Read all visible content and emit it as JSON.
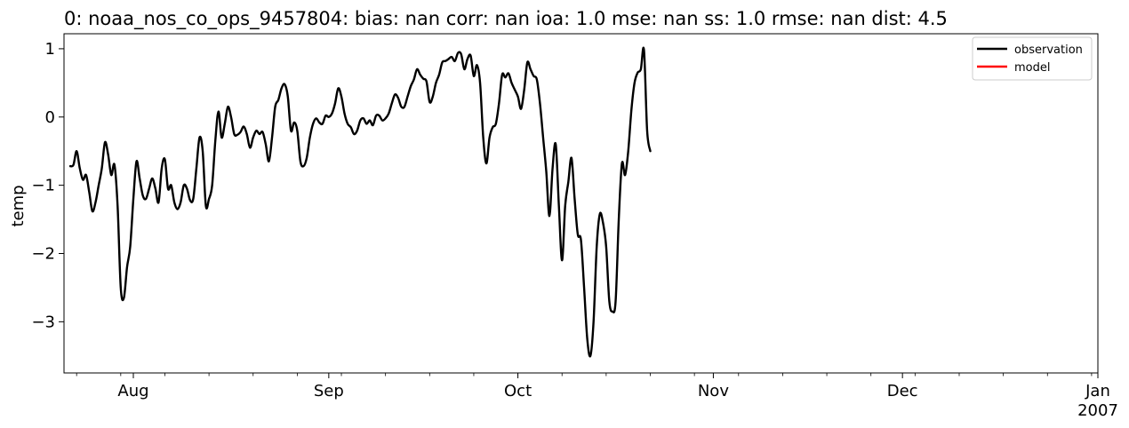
{
  "chart_data": {
    "type": "line",
    "title": "0: noaa_nos_co_ops_9457804: bias: nan  corr: nan  ioa: 1.0  mse: nan  ss: 1.0  rmse: nan  dist: 4.5",
    "xlabel": "",
    "ylabel": "temp",
    "xlim": [
      "2006-07-21",
      "2007-01-01"
    ],
    "ylim": [
      -3.75,
      1.22
    ],
    "x_ticks": [
      {
        "date": "2006-08-01",
        "label": "Aug"
      },
      {
        "date": "2006-09-01",
        "label": "Sep"
      },
      {
        "date": "2006-10-01",
        "label": "Oct"
      },
      {
        "date": "2006-11-01",
        "label": "Nov"
      },
      {
        "date": "2006-12-01",
        "label": "Dec"
      },
      {
        "date": "2007-01-01",
        "label": "Jan",
        "sublabel": "2007"
      }
    ],
    "y_ticks": [
      {
        "value": 1,
        "label": "1"
      },
      {
        "value": 0,
        "label": "0"
      },
      {
        "value": -1,
        "label": "−1"
      },
      {
        "value": -2,
        "label": "−2"
      },
      {
        "value": -3,
        "label": "−3"
      }
    ],
    "grid": false,
    "legend": {
      "position": "top-right"
    },
    "series": [
      {
        "name": "observation",
        "color": "#000000",
        "points": [
          [
            "2006-07-22",
            -0.72
          ],
          [
            "2006-07-22T12:00",
            -0.7
          ],
          [
            "2006-07-23",
            -0.5
          ],
          [
            "2006-07-23T12:00",
            -0.75
          ],
          [
            "2006-07-24",
            -0.92
          ],
          [
            "2006-07-24T12:00",
            -0.85
          ],
          [
            "2006-07-25",
            -1.1
          ],
          [
            "2006-07-25T12:00",
            -1.38
          ],
          [
            "2006-07-26",
            -1.25
          ],
          [
            "2006-07-26T12:00",
            -1.0
          ],
          [
            "2006-07-27",
            -0.75
          ],
          [
            "2006-07-27T12:00",
            -0.37
          ],
          [
            "2006-07-28",
            -0.55
          ],
          [
            "2006-07-28T12:00",
            -0.85
          ],
          [
            "2006-07-29",
            -0.7
          ],
          [
            "2006-07-29T12:00",
            -1.3
          ],
          [
            "2006-07-30",
            -2.5
          ],
          [
            "2006-07-30T12:00",
            -2.65
          ],
          [
            "2006-07-31",
            -2.2
          ],
          [
            "2006-07-31T12:00",
            -1.9
          ],
          [
            "2006-08-01",
            -1.2
          ],
          [
            "2006-08-01T12:00",
            -0.65
          ],
          [
            "2006-08-02",
            -0.9
          ],
          [
            "2006-08-02T12:00",
            -1.15
          ],
          [
            "2006-08-03",
            -1.2
          ],
          [
            "2006-08-03T12:00",
            -1.05
          ],
          [
            "2006-08-04",
            -0.9
          ],
          [
            "2006-08-04T12:00",
            -1.05
          ],
          [
            "2006-08-05",
            -1.25
          ],
          [
            "2006-08-05T12:00",
            -0.75
          ],
          [
            "2006-08-06",
            -0.62
          ],
          [
            "2006-08-06T12:00",
            -1.05
          ],
          [
            "2006-08-07",
            -1.0
          ],
          [
            "2006-08-07T12:00",
            -1.25
          ],
          [
            "2006-08-08",
            -1.35
          ],
          [
            "2006-08-08T12:00",
            -1.25
          ],
          [
            "2006-08-09",
            -1.0
          ],
          [
            "2006-08-09T12:00",
            -1.05
          ],
          [
            "2006-08-10",
            -1.22
          ],
          [
            "2006-08-10T12:00",
            -1.2
          ],
          [
            "2006-08-11",
            -0.75
          ],
          [
            "2006-08-11T12:00",
            -0.3
          ],
          [
            "2006-08-12",
            -0.5
          ],
          [
            "2006-08-12T12:00",
            -1.3
          ],
          [
            "2006-08-13",
            -1.2
          ],
          [
            "2006-08-13T12:00",
            -1.0
          ],
          [
            "2006-08-14",
            -0.35
          ],
          [
            "2006-08-14T12:00",
            0.08
          ],
          [
            "2006-08-15",
            -0.3
          ],
          [
            "2006-08-15T12:00",
            -0.1
          ],
          [
            "2006-08-16",
            0.15
          ],
          [
            "2006-08-16T12:00",
            0.0
          ],
          [
            "2006-08-17",
            -0.25
          ],
          [
            "2006-08-17T12:00",
            -0.26
          ],
          [
            "2006-08-18",
            -0.22
          ],
          [
            "2006-08-18T12:00",
            -0.14
          ],
          [
            "2006-08-19",
            -0.25
          ],
          [
            "2006-08-19T12:00",
            -0.45
          ],
          [
            "2006-08-20",
            -0.3
          ],
          [
            "2006-08-20T12:00",
            -0.2
          ],
          [
            "2006-08-21",
            -0.25
          ],
          [
            "2006-08-21T12:00",
            -0.22
          ],
          [
            "2006-08-22",
            -0.4
          ],
          [
            "2006-08-22T12:00",
            -0.65
          ],
          [
            "2006-08-23",
            -0.3
          ],
          [
            "2006-08-23T12:00",
            0.15
          ],
          [
            "2006-08-24",
            0.25
          ],
          [
            "2006-08-24T12:00",
            0.42
          ],
          [
            "2006-08-25",
            0.48
          ],
          [
            "2006-08-25T12:00",
            0.3
          ],
          [
            "2006-08-26",
            -0.2
          ],
          [
            "2006-08-26T12:00",
            -0.08
          ],
          [
            "2006-08-27",
            -0.2
          ],
          [
            "2006-08-27T12:00",
            -0.65
          ],
          [
            "2006-08-28",
            -0.72
          ],
          [
            "2006-08-28T12:00",
            -0.6
          ],
          [
            "2006-08-29",
            -0.3
          ],
          [
            "2006-08-29T12:00",
            -0.1
          ],
          [
            "2006-08-30",
            -0.02
          ],
          [
            "2006-08-30T12:00",
            -0.08
          ],
          [
            "2006-08-31",
            -0.1
          ],
          [
            "2006-08-31T12:00",
            0.02
          ],
          [
            "2006-09-01",
            0.0
          ],
          [
            "2006-09-01T12:00",
            0.05
          ],
          [
            "2006-09-02",
            0.2
          ],
          [
            "2006-09-02T12:00",
            0.42
          ],
          [
            "2006-09-03",
            0.3
          ],
          [
            "2006-09-03T12:00",
            0.05
          ],
          [
            "2006-09-04",
            -0.1
          ],
          [
            "2006-09-04T12:00",
            -0.15
          ],
          [
            "2006-09-05",
            -0.25
          ],
          [
            "2006-09-05T12:00",
            -0.2
          ],
          [
            "2006-09-06",
            -0.05
          ],
          [
            "2006-09-06T12:00",
            -0.02
          ],
          [
            "2006-09-07",
            -0.1
          ],
          [
            "2006-09-07T12:00",
            -0.05
          ],
          [
            "2006-09-08",
            -0.12
          ],
          [
            "2006-09-08T12:00",
            0.02
          ],
          [
            "2006-09-09",
            0.02
          ],
          [
            "2006-09-09T12:00",
            -0.05
          ],
          [
            "2006-09-10",
            -0.02
          ],
          [
            "2006-09-10T12:00",
            0.05
          ],
          [
            "2006-09-11",
            0.2
          ],
          [
            "2006-09-11T12:00",
            0.33
          ],
          [
            "2006-09-12",
            0.28
          ],
          [
            "2006-09-12T12:00",
            0.15
          ],
          [
            "2006-09-13",
            0.15
          ],
          [
            "2006-09-13T12:00",
            0.3
          ],
          [
            "2006-09-14",
            0.45
          ],
          [
            "2006-09-14T12:00",
            0.55
          ],
          [
            "2006-09-15",
            0.7
          ],
          [
            "2006-09-15T12:00",
            0.62
          ],
          [
            "2006-09-16",
            0.56
          ],
          [
            "2006-09-16T12:00",
            0.52
          ],
          [
            "2006-09-17",
            0.22
          ],
          [
            "2006-09-17T12:00",
            0.3
          ],
          [
            "2006-09-18",
            0.5
          ],
          [
            "2006-09-18T12:00",
            0.62
          ],
          [
            "2006-09-19",
            0.8
          ],
          [
            "2006-09-19T12:00",
            0.82
          ],
          [
            "2006-09-20",
            0.85
          ],
          [
            "2006-09-20T12:00",
            0.88
          ],
          [
            "2006-09-21",
            0.82
          ],
          [
            "2006-09-21T12:00",
            0.94
          ],
          [
            "2006-09-22",
            0.92
          ],
          [
            "2006-09-22T12:00",
            0.7
          ],
          [
            "2006-09-23",
            0.85
          ],
          [
            "2006-09-23T12:00",
            0.9
          ],
          [
            "2006-09-24",
            0.6
          ],
          [
            "2006-09-24T12:00",
            0.76
          ],
          [
            "2006-09-25",
            0.5
          ],
          [
            "2006-09-25T12:00",
            -0.3
          ],
          [
            "2006-09-26",
            -0.68
          ],
          [
            "2006-09-26T12:00",
            -0.3
          ],
          [
            "2006-09-27",
            -0.15
          ],
          [
            "2006-09-27T12:00",
            -0.1
          ],
          [
            "2006-09-28",
            0.2
          ],
          [
            "2006-09-28T12:00",
            0.62
          ],
          [
            "2006-09-29",
            0.58
          ],
          [
            "2006-09-29T12:00",
            0.64
          ],
          [
            "2006-09-30",
            0.5
          ],
          [
            "2006-09-30T12:00",
            0.4
          ],
          [
            "2006-10-01",
            0.3
          ],
          [
            "2006-10-01T12:00",
            0.12
          ],
          [
            "2006-10-02",
            0.4
          ],
          [
            "2006-10-02T12:00",
            0.8
          ],
          [
            "2006-10-03",
            0.7
          ],
          [
            "2006-10-03T12:00",
            0.6
          ],
          [
            "2006-10-04",
            0.55
          ],
          [
            "2006-10-04T12:00",
            0.2
          ],
          [
            "2006-10-05",
            -0.3
          ],
          [
            "2006-10-05T12:00",
            -0.8
          ],
          [
            "2006-10-06",
            -1.45
          ],
          [
            "2006-10-06T12:00",
            -0.75
          ],
          [
            "2006-10-07",
            -0.4
          ],
          [
            "2006-10-07T12:00",
            -1.3
          ],
          [
            "2006-10-08",
            -2.1
          ],
          [
            "2006-10-08T12:00",
            -1.3
          ],
          [
            "2006-10-09",
            -0.95
          ],
          [
            "2006-10-09T12:00",
            -0.6
          ],
          [
            "2006-10-10",
            -1.2
          ],
          [
            "2006-10-10T12:00",
            -1.72
          ],
          [
            "2006-10-11",
            -1.8
          ],
          [
            "2006-10-11T12:00",
            -2.5
          ],
          [
            "2006-10-12",
            -3.25
          ],
          [
            "2006-10-12T12:00",
            -3.5
          ],
          [
            "2006-10-13",
            -3.0
          ],
          [
            "2006-10-13T12:00",
            -1.9
          ],
          [
            "2006-10-14",
            -1.42
          ],
          [
            "2006-10-14T12:00",
            -1.55
          ],
          [
            "2006-10-15",
            -1.9
          ],
          [
            "2006-10-15T12:00",
            -2.7
          ],
          [
            "2006-10-16",
            -2.85
          ],
          [
            "2006-10-16T12:00",
            -2.7
          ],
          [
            "2006-10-17",
            -1.5
          ],
          [
            "2006-10-17T12:00",
            -0.68
          ],
          [
            "2006-10-18",
            -0.85
          ],
          [
            "2006-10-18T12:00",
            -0.5
          ],
          [
            "2006-10-19",
            0.1
          ],
          [
            "2006-10-19T12:00",
            0.5
          ],
          [
            "2006-10-20",
            0.65
          ],
          [
            "2006-10-20T12:00",
            0.7
          ],
          [
            "2006-10-21",
            0.98
          ],
          [
            "2006-10-21T12:00",
            -0.2
          ],
          [
            "2006-10-22",
            -0.5
          ]
        ]
      },
      {
        "name": "model",
        "color": "#ff0000",
        "points": []
      }
    ]
  }
}
